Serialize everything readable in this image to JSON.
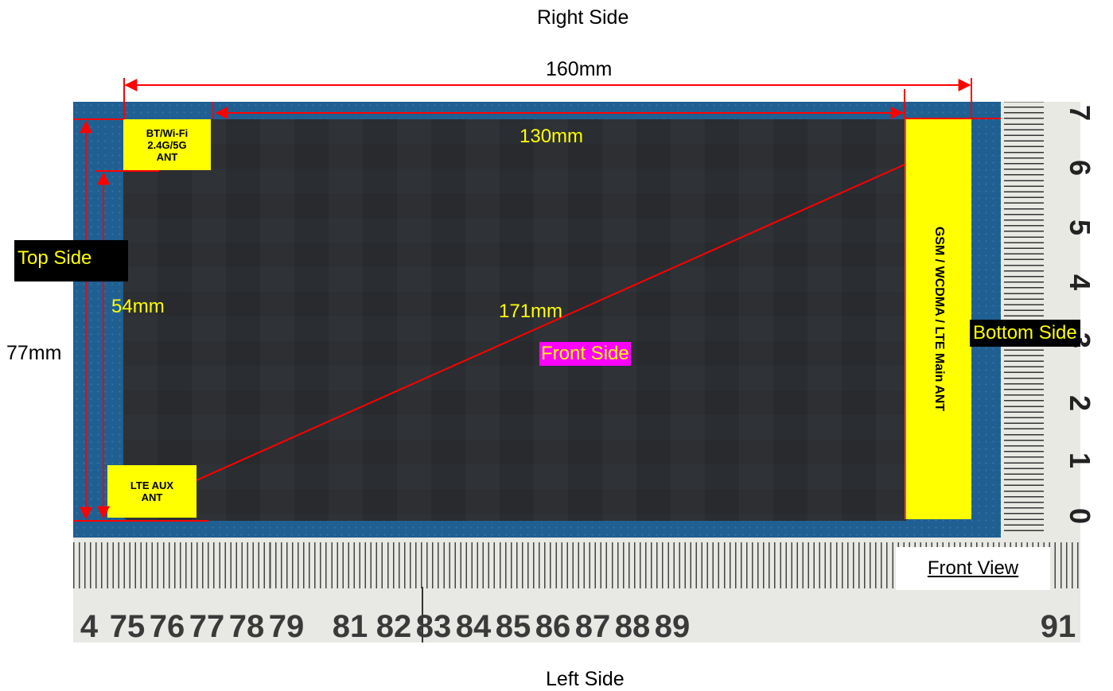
{
  "sides": {
    "right": "Right Side",
    "left": "Left Side",
    "top": "Top Side",
    "bottom": "Bottom Side",
    "front": "Front Side"
  },
  "dimensions": {
    "length_total": "160mm",
    "length_inner": "130mm",
    "height_total": "77mm",
    "height_inner": "54mm",
    "diagonal": "171mm"
  },
  "antennas": {
    "bt_wifi": [
      "BT/Wi-Fi",
      "2.4G/5G",
      "ANT"
    ],
    "lte_aux": [
      "LTE AUX",
      "ANT"
    ],
    "main": "GSM / WCDMA / LTE Main ANT"
  },
  "view_label": "Front View",
  "ruler_horizontal": [
    "4",
    "75",
    "76",
    "77",
    "78",
    "79",
    "81",
    "82",
    "83",
    "84",
    "85",
    "86",
    "87",
    "88",
    "89",
    "91"
  ],
  "ruler_vertical": [
    "7",
    "6",
    "5",
    "4",
    "3",
    "2",
    "1",
    "0"
  ],
  "colors": {
    "annotation_line": "#ff0000",
    "highlight": "#ffff00",
    "front_side_bg": "#ff00ff",
    "background_mat": "#1f5f92"
  }
}
